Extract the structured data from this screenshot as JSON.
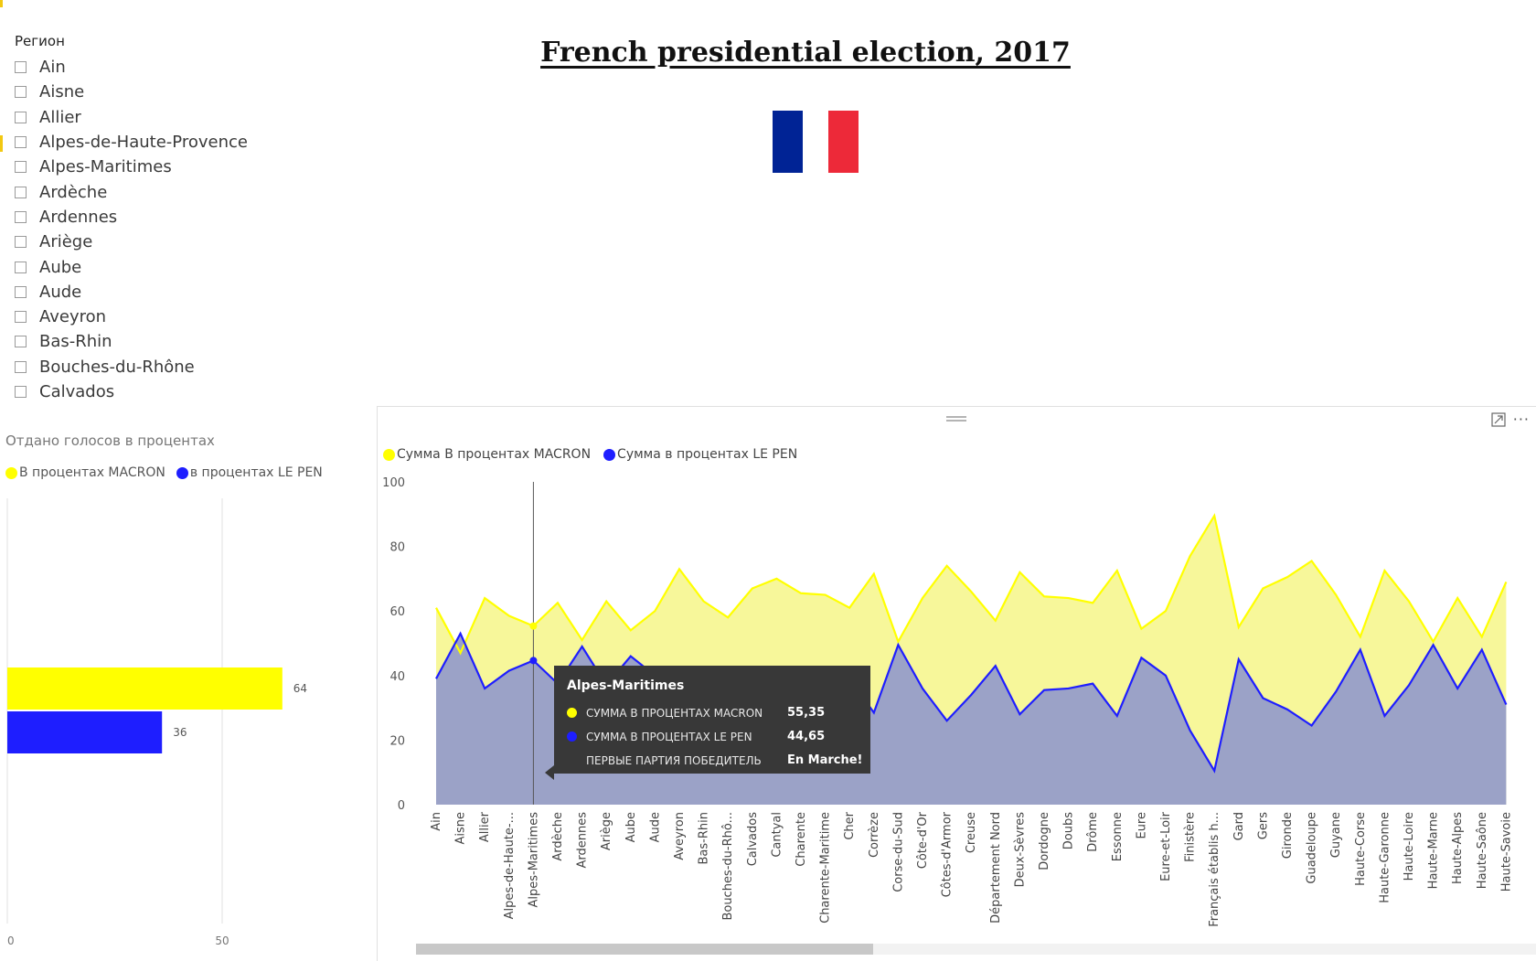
{
  "page": {
    "title": "French presidential election, 2017",
    "flag_colors": {
      "blue": "#002395",
      "white": "#ffffff",
      "red": "#ed2939"
    }
  },
  "slicer": {
    "title": "Регион",
    "items": [
      "Ain",
      "Aisne",
      "Allier",
      "Alpes-de-Haute-Provence",
      "Alpes-Maritimes",
      "Ardèche",
      "Ardennes",
      "Ariège",
      "Aube",
      "Aude",
      "Aveyron",
      "Bas-Rhin",
      "Bouches-du-Rhône",
      "Calvados"
    ]
  },
  "bar_visual": {
    "title": "Отдано голосов в процентах",
    "legend": [
      {
        "label": "В процентах MACRON",
        "color": "#ffff00"
      },
      {
        "label": "в процентах LE PEN",
        "color": "#1e1eff"
      }
    ]
  },
  "area_visual": {
    "legend": [
      {
        "label": "Сумма В процентах MACRON",
        "color": "#ffff00"
      },
      {
        "label": "Сумма в процентах LE PEN",
        "color": "#1e1eff"
      }
    ],
    "more_label": "···"
  },
  "tooltip": {
    "title": "Alpes-Maritimes",
    "rows": [
      {
        "label": "СУММА В ПРОЦЕНТАХ MACRON",
        "value": "55,35",
        "color": "#ffff00"
      },
      {
        "label": "СУММА В ПРОЦЕНТАХ LE PEN",
        "value": "44,65",
        "color": "#1e1eff"
      },
      {
        "label": "ПЕРВЫЕ ПАРТИЯ ПОБЕДИТЕЛЬ",
        "value": "En Marche!",
        "color": ""
      }
    ]
  },
  "chart_data": [
    {
      "type": "bar",
      "orientation": "horizontal",
      "categories": [
        ""
      ],
      "series": [
        {
          "name": "В процентах MACRON",
          "values": [
            64
          ],
          "color": "#ffff00"
        },
        {
          "name": "в процентах LE PEN",
          "values": [
            36
          ],
          "color": "#1e1eff"
        }
      ],
      "xlim": [
        0,
        72
      ],
      "x_ticks": [
        0,
        50
      ],
      "data_labels": [
        "64",
        "36"
      ]
    },
    {
      "type": "area",
      "categories": [
        "Ain",
        "Aisne",
        "Allier",
        "Alpes-de-Haute-...",
        "Alpes-Maritimes",
        "Ardèche",
        "Ardennes",
        "Ariège",
        "Aube",
        "Aude",
        "Aveyron",
        "Bas-Rhin",
        "Bouches-du-Rhô...",
        "Calvados",
        "Cantyal",
        "Charente",
        "Charente-Maritime",
        "Cher",
        "Corrèze",
        "Corse-du-Sud",
        "Côte-d'Or",
        "Côtes-d'Armor",
        "Creuse",
        "Département Nord",
        "Deux-Sèvres",
        "Dordogne",
        "Doubs",
        "Drôme",
        "Essonne",
        "Eure",
        "Eure-et-Loir",
        "Finistère",
        "Français établis h...",
        "Gard",
        "Gers",
        "Gironde",
        "Guadeloupe",
        "Guyane",
        "Haute-Corse",
        "Haute-Garonne",
        "Haute-Loire",
        "Haute-Marne",
        "Haute-Alpes",
        "Haute-Saône",
        "Haute-Savoie"
      ],
      "series": [
        {
          "name": "Сумма В процентах MACRON",
          "color": "#ffff00",
          "values": [
            61,
            47,
            64,
            58.5,
            55.35,
            62.5,
            51,
            63,
            54,
            60,
            73,
            63,
            58,
            67,
            70,
            65.5,
            65,
            61,
            71.5,
            50.5,
            64,
            74,
            66,
            57,
            72,
            64.5,
            64,
            62.5,
            72.5,
            54.5,
            60,
            77,
            89.5,
            55,
            67,
            70.5,
            75.5,
            65,
            52,
            72.5,
            63,
            50.5,
            64,
            52,
            69
          ]
        },
        {
          "name": "Сумма в процентах LE PEN",
          "color": "#1e1eff",
          "values": [
            39,
            53,
            36,
            41.5,
            44.65,
            37.5,
            49,
            37,
            46,
            40,
            27,
            37,
            42,
            33,
            30,
            34.5,
            35,
            39,
            28.5,
            49.5,
            36,
            26,
            34,
            43,
            28,
            35.5,
            36,
            37.5,
            27.5,
            45.5,
            40,
            23,
            10.5,
            45,
            33,
            29.5,
            24.5,
            35,
            48,
            27.5,
            37,
            49.5,
            36,
            48,
            31
          ]
        }
      ],
      "ylim": [
        0,
        100
      ],
      "y_ticks": [
        0,
        20,
        40,
        60,
        80,
        100
      ],
      "hovered_category": "Alpes-Maritimes"
    }
  ]
}
